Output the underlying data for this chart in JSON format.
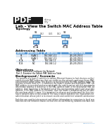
{
  "title": "Lab – View the Switch MAC Address Table",
  "subtitle": "Topology",
  "header_bg": "#1a1a1a",
  "page_bg": "#ffffff",
  "addressing_table": {
    "headers": [
      "Device",
      "Interface",
      "IP Address",
      "Subnet Mask"
    ],
    "rows": [
      [
        "S1",
        "VLAN 1",
        "192.168.1.11",
        "255.255.255.0"
      ],
      [
        "S2",
        "VLAN 1",
        "192.168.1.12",
        "255.255.255.0"
      ],
      [
        "PC-A",
        "NIC",
        "192.168.1.1",
        "255.255.255.0"
      ],
      [
        "PC-B",
        "NIC",
        "192.168.1.2",
        "255.255.255.0"
      ]
    ],
    "header_bg": "#5b9bd5",
    "row_bg1": "#dce6f1",
    "row_bg2": "#ffffff"
  },
  "objectives_title": "Objectives",
  "objectives": [
    "Part 1: Build and Configure the Network",
    "Part 2: Examine the Switch MAC Address Table"
  ],
  "background_title": "Background / Scenario",
  "background_lines": [
    "The purpose of a layer 2 switch is to deliver Ethernet frames to host devices on the local network. The",
    "switch records MAC addresses that are visible on the network, and maps those MAC addresses to its",
    "own Ethernet switch ports. This process is called building the MAC address table. When a switch",
    "receives a frame from a PC, it examines the frame's source and destination MAC addresses. The source",
    "MAC address is recorded and associated with the switch port on which it was received. Then the",
    "destination address is looked up in the MAC address table. If the destination MAC address is a known",
    "address, then the frame is forwarded out of the corresponding switch port associated with that MAC",
    "address. If the MAC address is unknown, then the frame is broadcasted out all switch ports, except",
    "the one from which it came. It is important to observe and understand the function of a switch and",
    "how it delivers data on the network. The way a switch operates has implications for network",
    "administration whose job it is to ensure secure and consistent network communications.",
    "",
    "Switches are used to interconnect and deliver information to computers in local area networks.",
    "Switches deliver Ethernet frames to host devices identified by network interface card MAC addresses."
  ],
  "footer_copy": "© 2013 Cisco and/or its affiliates. All rights reserved. This document is",
  "footer_page": "Page 1 of 6",
  "footer_url": "www.netacad.com",
  "topo_sw1_label": "S1",
  "topo_sw2_label": "S2",
  "topo_pc_a_label": "PC-A",
  "topo_pc_b_label": "PC-B",
  "topo_link_mid": "G0/1",
  "topo_sw1_port_left": "F0/1",
  "topo_sw1_port_right": "G0/2",
  "topo_sw2_port_left": "G0/2",
  "topo_sw2_port_right": "F0/5",
  "topo_sw1_pc_port": "F0/6",
  "topo_sw2_pc_port": "F0/18"
}
